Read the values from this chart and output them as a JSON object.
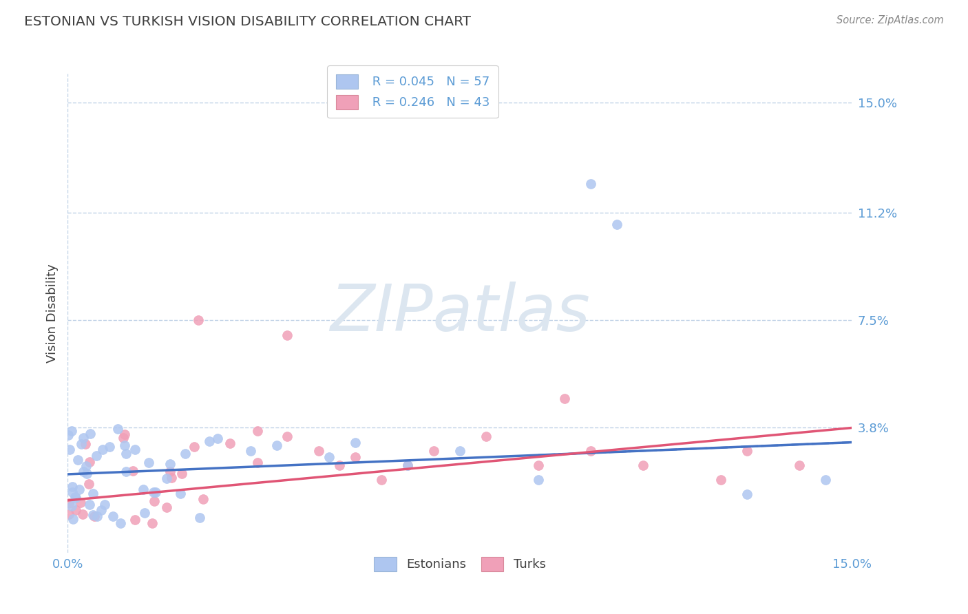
{
  "title": "ESTONIAN VS TURKISH VISION DISABILITY CORRELATION CHART",
  "source": "Source: ZipAtlas.com",
  "ylabel": "Vision Disability",
  "ytick_labels": [
    "15.0%",
    "11.2%",
    "7.5%",
    "3.8%"
  ],
  "ytick_values": [
    0.15,
    0.112,
    0.075,
    0.038
  ],
  "xlim": [
    0.0,
    0.15
  ],
  "ylim": [
    -0.005,
    0.16
  ],
  "legend_r1": "R = 0.045",
  "legend_n1": "N = 57",
  "legend_r2": "R = 0.246",
  "legend_n2": "N = 43",
  "color_estonian": "#aec6f0",
  "color_turkish": "#f0a0b8",
  "color_estonian_line": "#4472c4",
  "color_turkish_line": "#e05575",
  "color_axis_labels": "#5b9bd5",
  "color_title": "#404040",
  "background_color": "#ffffff",
  "grid_color": "#b8cce4",
  "watermark": "ZIPatlas",
  "watermark_color": "#dce6f0"
}
